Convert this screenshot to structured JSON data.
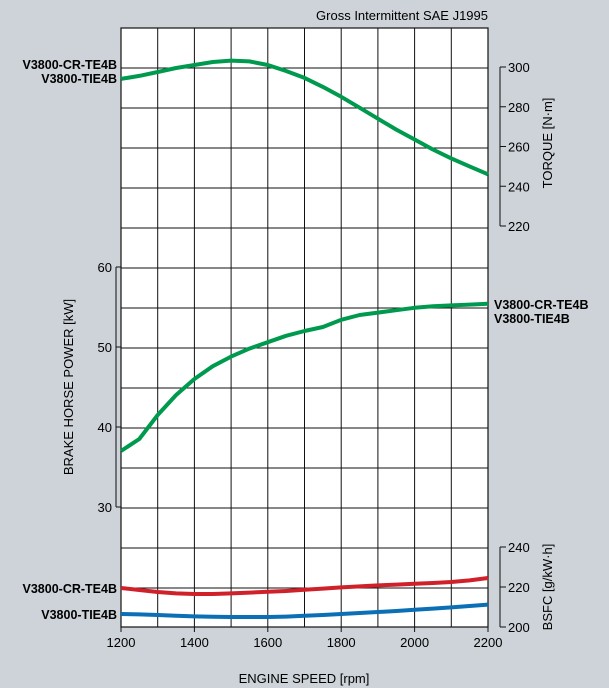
{
  "chart_data": {
    "type": "line",
    "title": "Gross Intermittent SAE J1995",
    "xlabel": "ENGINE SPEED [rpm]",
    "xlim": [
      1200,
      2200
    ],
    "xticks": [
      1200,
      1400,
      1600,
      1800,
      2000,
      2200
    ],
    "grid": true,
    "axes": {
      "torque": {
        "label": "TORQUE [N·m]",
        "range": [
          220,
          310
        ],
        "ticks": [
          220,
          240,
          260,
          280,
          300
        ]
      },
      "power": {
        "label": "BRAKE HORSE POWER [kW]",
        "range": [
          25,
          60
        ],
        "ticks": [
          30,
          40,
          50,
          60
        ]
      },
      "bsfc": {
        "label": "BSFC [g/kW·h]",
        "range": [
          200,
          240
        ],
        "ticks": [
          200,
          220,
          240
        ]
      }
    },
    "series": [
      {
        "group": "torque",
        "axis": "torque",
        "color": "#009a4e",
        "labels": [
          "V3800-CR-TE4B",
          "V3800-TIE4B"
        ],
        "label_side": "left",
        "x": [
          1200,
          1250,
          1300,
          1350,
          1400,
          1450,
          1500,
          1550,
          1600,
          1650,
          1700,
          1750,
          1800,
          1850,
          1900,
          1950,
          2000,
          2050,
          2100,
          2150,
          2200
        ],
        "y": [
          294,
          295.5,
          297.5,
          299.5,
          301,
          302.5,
          303.2,
          302.8,
          301,
          298,
          294.5,
          290,
          285,
          279.5,
          274,
          268.5,
          263.5,
          258.5,
          254,
          250,
          246
        ]
      },
      {
        "group": "power",
        "axis": "power",
        "color": "#009a4e",
        "labels": [
          "V3800-CR-TE4B",
          "V3800-TIE4B"
        ],
        "label_side": "right",
        "x": [
          1200,
          1250,
          1300,
          1350,
          1400,
          1450,
          1500,
          1550,
          1600,
          1650,
          1700,
          1750,
          1800,
          1850,
          1900,
          1950,
          2000,
          2050,
          2100,
          2150,
          2200
        ],
        "y": [
          37,
          38.5,
          41.5,
          44,
          46,
          47.6,
          48.8,
          49.8,
          50.6,
          51.4,
          52,
          52.5,
          53.4,
          54,
          54.3,
          54.6,
          54.9,
          55.1,
          55.2,
          55.3,
          55.4
        ]
      },
      {
        "group": "bsfc",
        "axis": "bsfc",
        "color": "#d0212b",
        "labels": [
          "V3800-CR-TE4B"
        ],
        "label_side": "left",
        "x": [
          1200,
          1250,
          1300,
          1350,
          1400,
          1450,
          1500,
          1550,
          1600,
          1650,
          1700,
          1750,
          1800,
          1850,
          1900,
          1950,
          2000,
          2050,
          2100,
          2150,
          2200
        ],
        "y": [
          219.5,
          218.5,
          217.5,
          216.8,
          216.5,
          216.5,
          216.8,
          217.2,
          217.6,
          218,
          218.6,
          219.2,
          219.8,
          220.3,
          220.8,
          221.2,
          221.6,
          222,
          222.5,
          223.3,
          224.5
        ]
      },
      {
        "group": "bsfc",
        "axis": "bsfc",
        "color": "#0a6fb5",
        "labels": [
          "V3800-TIE4B"
        ],
        "label_side": "left",
        "x": [
          1200,
          1250,
          1300,
          1350,
          1400,
          1450,
          1500,
          1550,
          1600,
          1650,
          1700,
          1750,
          1800,
          1850,
          1900,
          1950,
          2000,
          2050,
          2100,
          2150,
          2200
        ],
        "y": [
          206.5,
          206.3,
          206,
          205.6,
          205.3,
          205.1,
          205,
          205,
          205,
          205.2,
          205.6,
          206,
          206.5,
          207,
          207.5,
          208,
          208.6,
          209.2,
          209.8,
          210.5,
          211.2
        ]
      }
    ]
  }
}
